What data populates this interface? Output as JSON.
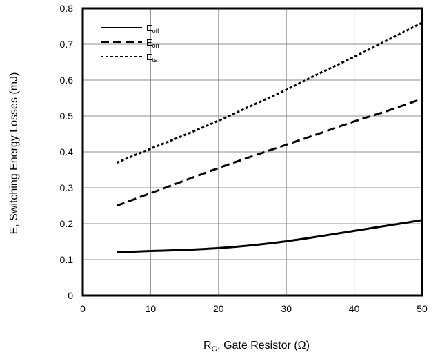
{
  "chart_data": {
    "type": "line",
    "x_label": {
      "main": "R",
      "sub": "G",
      "rest": ", Gate Resistor (Ω)"
    },
    "y_label": "E, Switching Energy Losses (mJ)",
    "xlim": [
      0,
      50
    ],
    "ylim": [
      0,
      0.8
    ],
    "x_ticks": [
      "0",
      "10",
      "20",
      "30",
      "40",
      "50"
    ],
    "y_ticks": [
      "0",
      "0.1",
      "0.2",
      "0.3",
      "0.4",
      "0.5",
      "0.6",
      "0.7",
      "0.8"
    ],
    "grid": true,
    "legend_position": "top-left",
    "series": [
      {
        "name": {
          "main": "E",
          "sub": "off"
        },
        "line_style": "solid",
        "x": [
          5,
          10,
          15,
          20,
          25,
          30,
          35,
          40,
          45,
          50
        ],
        "y": [
          0.12,
          0.124,
          0.127,
          0.132,
          0.14,
          0.151,
          0.165,
          0.18,
          0.195,
          0.21
        ]
      },
      {
        "name": {
          "main": "E",
          "sub": "on"
        },
        "line_style": "dashed",
        "x": [
          5,
          10,
          15,
          20,
          25,
          30,
          35,
          40,
          45,
          50
        ],
        "y": [
          0.25,
          0.285,
          0.32,
          0.355,
          0.388,
          0.42,
          0.452,
          0.485,
          0.515,
          0.548
        ]
      },
      {
        "name": {
          "main": "E",
          "sub": "ts"
        },
        "line_style": "dotted",
        "x": [
          5,
          10,
          15,
          20,
          25,
          30,
          35,
          40,
          45,
          50
        ],
        "y": [
          0.37,
          0.409,
          0.447,
          0.487,
          0.53,
          0.573,
          0.62,
          0.665,
          0.712,
          0.76
        ]
      }
    ]
  }
}
